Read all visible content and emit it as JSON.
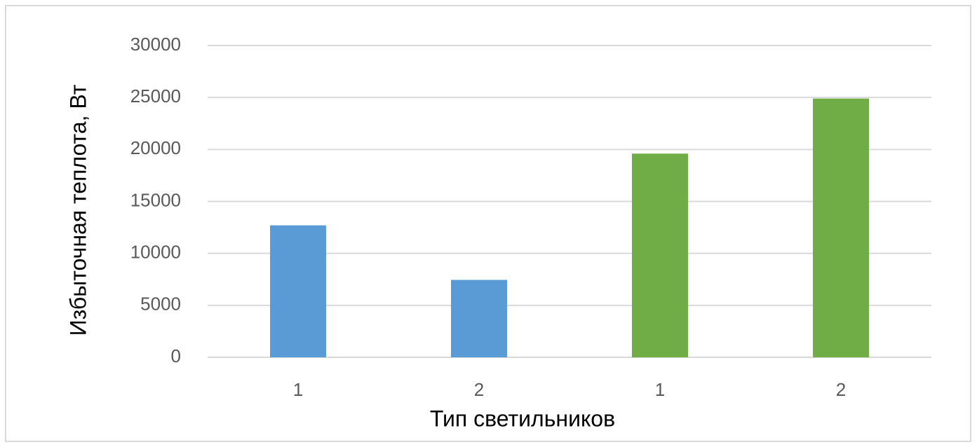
{
  "chart_data": {
    "type": "bar",
    "x_label": "Тип светильников",
    "y_label": "Избыточная теплота, Вт",
    "categories": [
      "1",
      "2",
      "1",
      "2"
    ],
    "values": [
      12700,
      7450,
      19600,
      24900
    ],
    "colors": [
      "#5b9bd5",
      "#5b9bd5",
      "#70ad47",
      "#70ad47"
    ],
    "ylim": [
      0,
      30000
    ],
    "yticks": [
      0,
      5000,
      10000,
      15000,
      20000,
      25000,
      30000
    ],
    "grid": true
  }
}
